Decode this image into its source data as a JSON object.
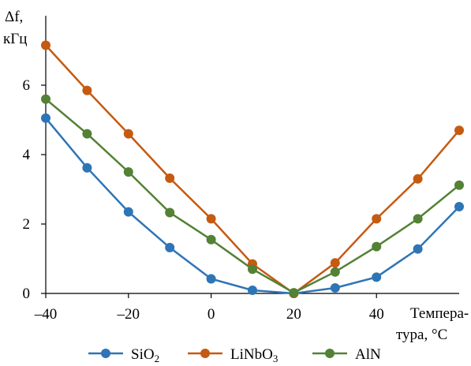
{
  "chart_data": {
    "type": "line",
    "ylabel_lines": [
      "Δf,",
      "кГц"
    ],
    "xlabel_lines": [
      "Темпера-",
      "тура, °C"
    ],
    "x": [
      -40,
      -30,
      -20,
      -10,
      0,
      10,
      20,
      30,
      40,
      50,
      60
    ],
    "xlim": [
      -40,
      60
    ],
    "ylim": [
      0,
      8
    ],
    "x_ticks": [
      -40,
      -20,
      0,
      20,
      40
    ],
    "x_tick_labels": [
      "–40",
      "–20",
      "0",
      "20",
      "40"
    ],
    "y_ticks": [
      0,
      2,
      4,
      6
    ],
    "y_tick_labels": [
      "0",
      "2",
      "4",
      "6"
    ],
    "grid": false,
    "legend_position": "bottom",
    "series": [
      {
        "name": "SiO2",
        "label_base": "SiO",
        "label_sub": "2",
        "color": "#2e75b6",
        "values": [
          5.05,
          3.62,
          2.35,
          1.32,
          0.42,
          0.09,
          0.0,
          0.16,
          0.47,
          1.28,
          2.5
        ]
      },
      {
        "name": "LiNbO3",
        "label_base": "LiNbO",
        "label_sub": "3",
        "color": "#c55a11",
        "values": [
          7.15,
          5.85,
          4.6,
          3.32,
          2.15,
          0.85,
          0.0,
          0.88,
          2.15,
          3.3,
          4.7
        ]
      },
      {
        "name": "AlN",
        "label_base": "AlN",
        "label_sub": "",
        "color": "#538135",
        "values": [
          5.6,
          4.6,
          3.5,
          2.33,
          1.55,
          0.7,
          0.02,
          0.62,
          1.35,
          2.15,
          3.12
        ]
      }
    ]
  }
}
